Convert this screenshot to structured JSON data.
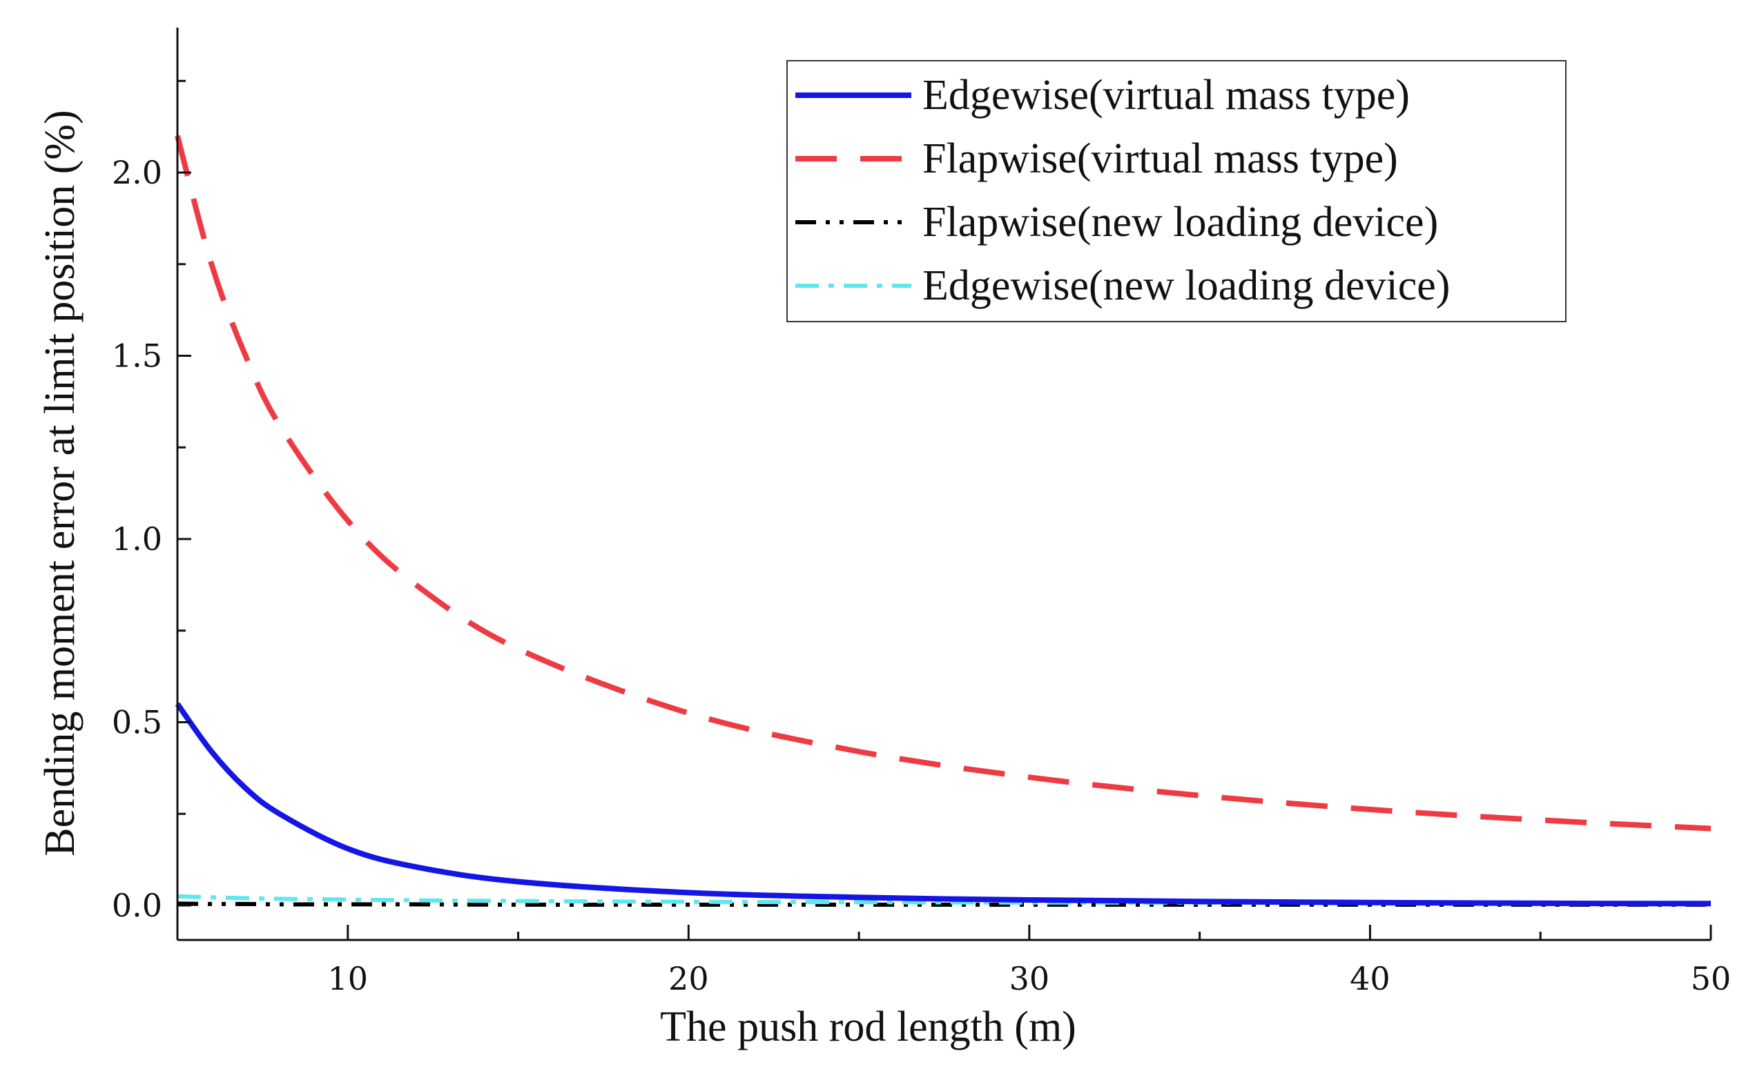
{
  "chart_data": {
    "type": "line",
    "xlabel": "The push rod length (m)",
    "ylabel": "Bending moment error at limit position (%)",
    "xlim": [
      5,
      50
    ],
    "ylim": [
      -0.1,
      2.4
    ],
    "x_ticks": [
      10,
      20,
      30,
      40,
      50
    ],
    "x_tick_labels": [
      "10",
      "20",
      "30",
      "40",
      "50"
    ],
    "y_ticks": [
      0.0,
      0.5,
      1.0,
      1.5,
      2.0
    ],
    "y_tick_labels": [
      "0.0",
      "0.5",
      "1.0",
      "1.5",
      "2.0"
    ],
    "legend_position": "top-right",
    "x": [
      5,
      6,
      7,
      8,
      10,
      12,
      15,
      20,
      25,
      30,
      35,
      40,
      45,
      50
    ],
    "series": [
      {
        "name": "Edgewise(virtual mass type)",
        "color": "#1515e6",
        "style": "solid",
        "values": [
          0.55,
          0.42,
          0.32,
          0.25,
          0.155,
          0.105,
          0.065,
          0.035,
          0.022,
          0.015,
          0.011,
          0.008,
          0.006,
          0.005
        ]
      },
      {
        "name": "Flapwise(virtual mass type)",
        "color": "#ee3b43",
        "style": "dashed",
        "values": [
          2.1,
          1.75,
          1.5,
          1.31,
          1.05,
          0.875,
          0.7,
          0.525,
          0.42,
          0.35,
          0.3,
          0.262,
          0.233,
          0.21
        ]
      },
      {
        "name": "Flapwise(new loading device)",
        "color": "#000000",
        "style": "dash-dot-dot",
        "values": [
          0.005,
          0.004,
          0.004,
          0.003,
          0.003,
          0.003,
          0.002,
          0.002,
          0.002,
          0.002,
          0.002,
          0.002,
          0.002,
          0.002
        ]
      },
      {
        "name": "Edgewise(new loading device)",
        "color": "#5ee8ee",
        "style": "dash-dot",
        "values": [
          0.025,
          0.022,
          0.02,
          0.018,
          0.016,
          0.014,
          0.012,
          0.01,
          0.009,
          0.008,
          0.008,
          0.007,
          0.007,
          0.007
        ]
      }
    ]
  }
}
